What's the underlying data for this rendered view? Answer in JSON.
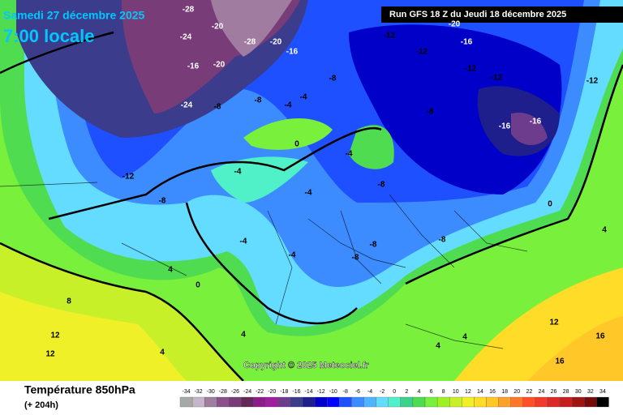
{
  "header": {
    "date": "Samedi 27 décembre 2025",
    "time": "7:00 locale",
    "run": "Run GFS 18 Z du Jeudi 18 décembre 2025"
  },
  "copyright": "Copyright © 2025 Meteociel.fr",
  "footer": {
    "title": "Température 850hPa",
    "lead": "(+ 204h)"
  },
  "scale": [
    {
      "value": -34,
      "color": "#a8a8a8"
    },
    {
      "value": -32,
      "color": "#c8b4c8"
    },
    {
      "value": -30,
      "color": "#a07ca0"
    },
    {
      "value": -28,
      "color": "#8c508c"
    },
    {
      "value": -26,
      "color": "#783c78"
    },
    {
      "value": -24,
      "color": "#64285a"
    },
    {
      "value": -22,
      "color": "#8c1e8c"
    },
    {
      "value": -20,
      "color": "#a01ea0"
    },
    {
      "value": -18,
      "color": "#6e3c8c"
    },
    {
      "value": -16,
      "color": "#3c3c8c"
    },
    {
      "value": -14,
      "color": "#1e1e8c"
    },
    {
      "value": -12,
      "color": "#0000c8"
    },
    {
      "value": -10,
      "color": "#0000ff"
    },
    {
      "value": -8,
      "color": "#1e50ff"
    },
    {
      "value": -6,
      "color": "#3c8cff"
    },
    {
      "value": -4,
      "color": "#50b4ff"
    },
    {
      "value": -2,
      "color": "#64dcff"
    },
    {
      "value": 0,
      "color": "#50f0c8"
    },
    {
      "value": 2,
      "color": "#3cd28c"
    },
    {
      "value": 4,
      "color": "#50dc50"
    },
    {
      "value": 6,
      "color": "#78f03c"
    },
    {
      "value": 8,
      "color": "#a0f028"
    },
    {
      "value": 10,
      "color": "#c8f028"
    },
    {
      "value": 12,
      "color": "#f0f028"
    },
    {
      "value": 14,
      "color": "#ffdc28"
    },
    {
      "value": 16,
      "color": "#ffc828"
    },
    {
      "value": 18,
      "color": "#ffa028"
    },
    {
      "value": 20,
      "color": "#ff7828"
    },
    {
      "value": 22,
      "color": "#ff5028"
    },
    {
      "value": 24,
      "color": "#f03c28"
    },
    {
      "value": 26,
      "color": "#dc2828"
    },
    {
      "value": 28,
      "color": "#c81e1e"
    },
    {
      "value": 30,
      "color": "#a01414"
    },
    {
      "value": 32,
      "color": "#780a0a"
    },
    {
      "value": 34,
      "color": "#000000"
    }
  ],
  "map_labels": [
    -28,
    -24,
    -20,
    -28,
    -20,
    -16,
    -16,
    -20,
    -24,
    -12,
    -12,
    -16,
    -20,
    -12,
    -8,
    -8,
    -4,
    -4,
    -8,
    -8,
    -12,
    -12,
    -8,
    -16,
    -16,
    -12,
    -8,
    -4,
    0,
    -4,
    -4,
    -8,
    -8,
    -4,
    -4,
    -8,
    0,
    4,
    8,
    12,
    12,
    16,
    16,
    4,
    4,
    4,
    0,
    12,
    4,
    4
  ]
}
